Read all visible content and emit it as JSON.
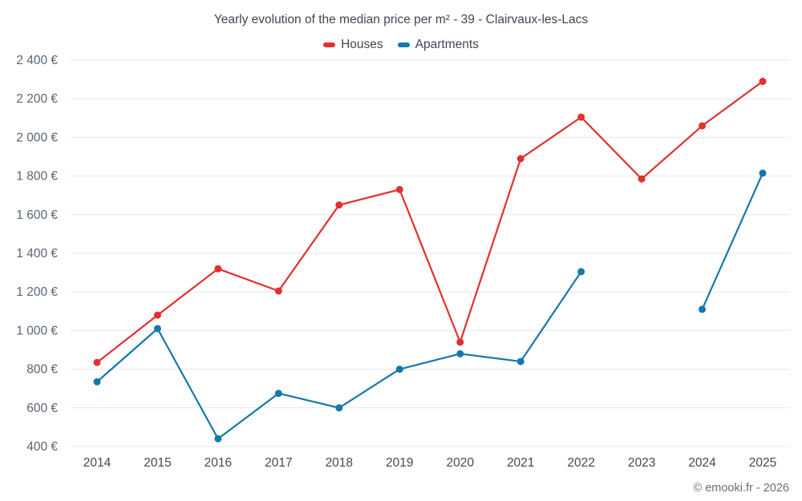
{
  "footer": "© emooki.fr - 2026",
  "chart_data": {
    "type": "line",
    "title": "Yearly evolution of the median price per m² - 39 - Clairvaux-les-Lacs",
    "x": [
      2014,
      2015,
      2016,
      2017,
      2018,
      2019,
      2020,
      2021,
      2022,
      2023,
      2024,
      2025
    ],
    "series": [
      {
        "name": "Houses",
        "color": "#e03030",
        "values": [
          835,
          1080,
          1320,
          1205,
          1650,
          1730,
          940,
          1890,
          2105,
          1785,
          2060,
          2290
        ]
      },
      {
        "name": "Apartments",
        "color": "#1478ad",
        "values": [
          735,
          1010,
          440,
          675,
          600,
          800,
          880,
          840,
          1305,
          null,
          1110,
          1815
        ]
      }
    ],
    "ylim": [
      400,
      2400
    ],
    "ytick_step": 200,
    "ytick_suffix": "€",
    "xlabel": "",
    "ylabel": "",
    "grid": "horizontal",
    "legend_position": "top"
  }
}
